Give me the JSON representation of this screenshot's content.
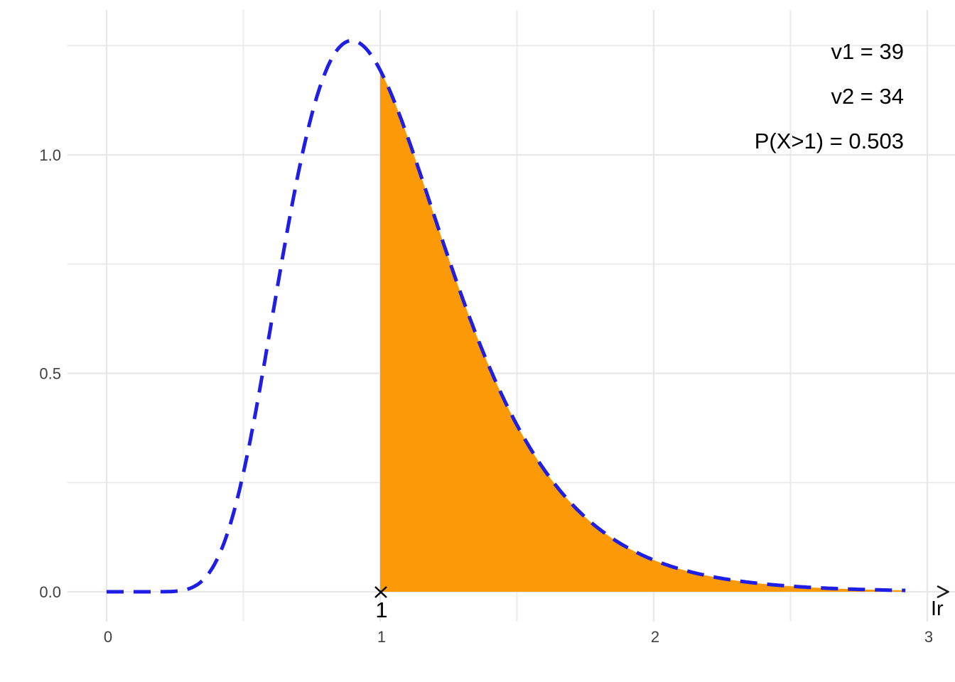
{
  "chart_data": {
    "type": "line",
    "subtype": "f-distribution-density",
    "distribution": "F",
    "v1": 39,
    "v2": 34,
    "p_statement": "P(X>1) = 0.503",
    "p_value": 0.503,
    "threshold": 1,
    "annotations": [
      "v1 = 39",
      "v2 = 34",
      "P(X>1) = 0.503"
    ],
    "x_ticks": [
      {
        "v": 0,
        "label": "0"
      },
      {
        "v": 1,
        "label": "1"
      },
      {
        "v": 2,
        "label": "2"
      },
      {
        "v": 3,
        "label": "3"
      }
    ],
    "y_ticks": [
      {
        "v": 0,
        "label": "0.0"
      },
      {
        "v": 0.5,
        "label": "0.5"
      },
      {
        "v": 1,
        "label": "1.0"
      }
    ],
    "x_minor": [
      0.5,
      1.5,
      2.5
    ],
    "y_minor": [
      0.25,
      0.75,
      1.25
    ],
    "xlim": [
      0,
      3.1
    ],
    "ylim": [
      0,
      1.33
    ],
    "grid": true,
    "legend_position": "none",
    "curve": {
      "x_start": 0,
      "x_end": 2.92,
      "shade_from": 1,
      "shade_to": 2.92,
      "peak_x": 0.89,
      "peak_y": 1.27,
      "density_at_threshold": 1.2,
      "line_style": "dashed"
    },
    "marker": {
      "x": 1,
      "y": 0,
      "symbol": "cross",
      "label": "1"
    },
    "axis_arrow_label": "Ir",
    "colors": {
      "curve": "#1E1EE6",
      "fill": "#FB9A06",
      "grid_major": "#E7E7E7",
      "grid_minor": "#EBEBEB",
      "axis_text": "#404040",
      "annotation_text": "#000000",
      "background": "#FFFFFF"
    }
  }
}
